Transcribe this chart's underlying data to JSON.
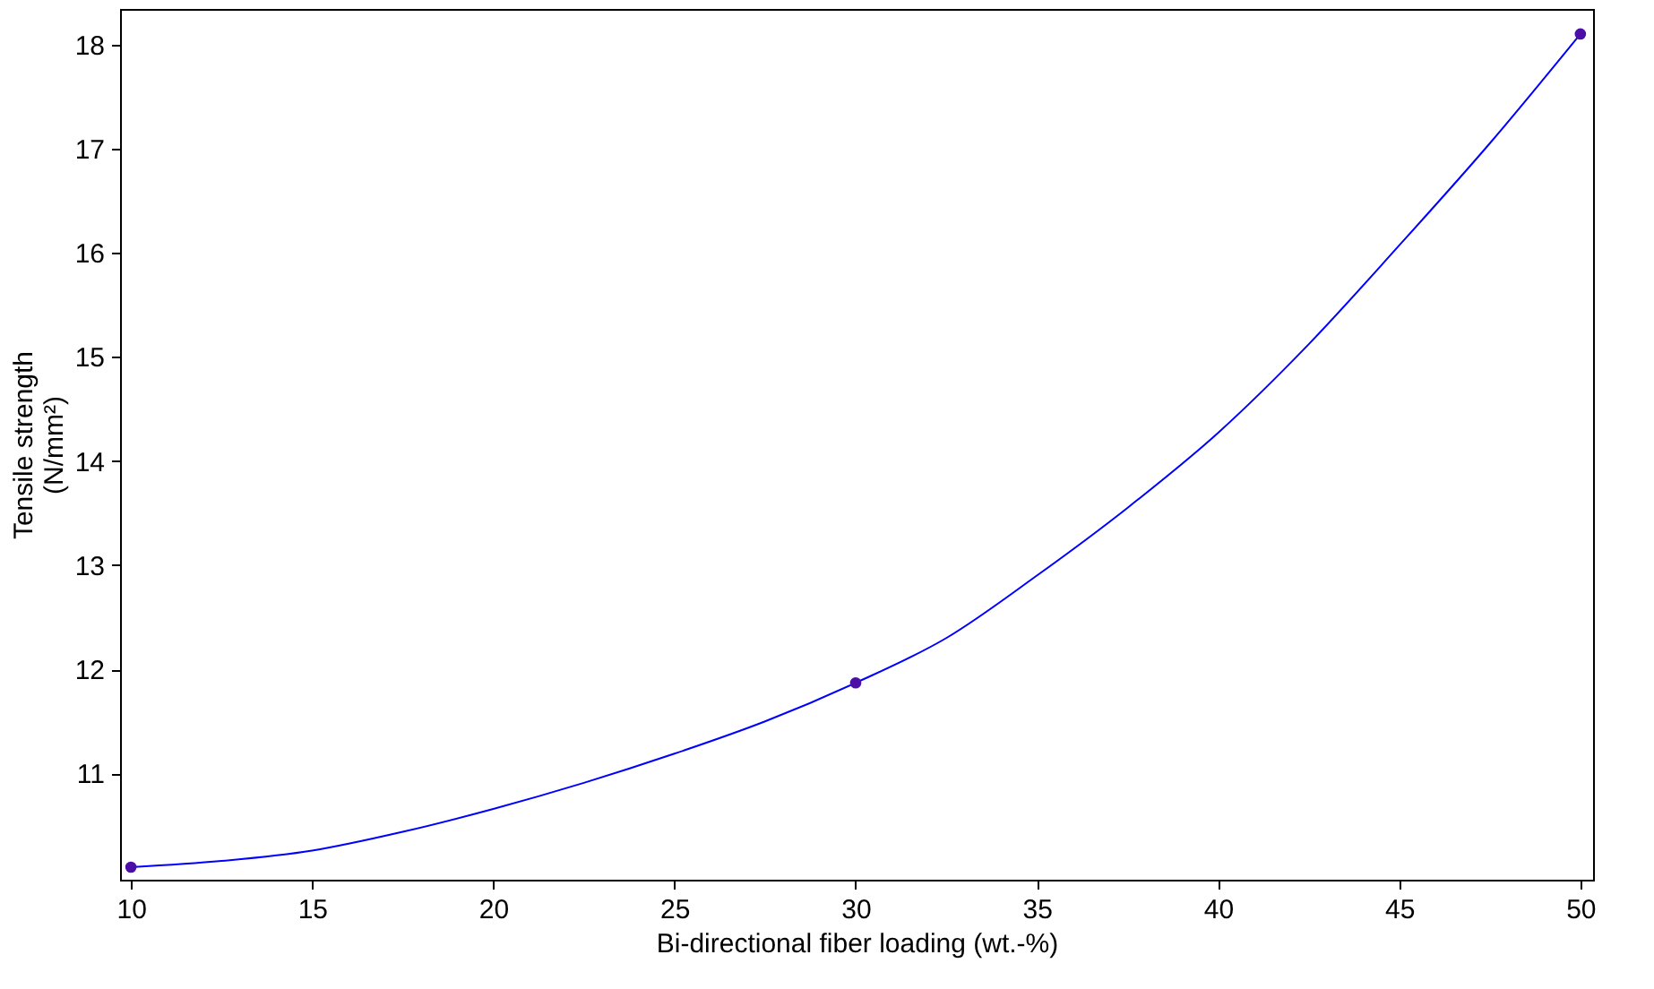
{
  "chart_data": {
    "type": "scatter",
    "xlabel": "Bi-directional fiber loading (wt.-%)",
    "ylabel": "Tensile strength\n(N/mm²)",
    "xlim": [
      9.7,
      50.35
    ],
    "xticks": [
      10,
      15,
      20,
      25,
      30,
      35,
      40,
      45,
      50
    ],
    "ylim": [
      9.98,
      18.34
    ],
    "yticks": [
      11,
      12,
      13,
      14,
      15,
      16,
      17,
      18
    ],
    "grid": false,
    "series": [
      {
        "type": "line",
        "color": "#0000ff",
        "marker": "none",
        "x": [
          10,
          12.5,
          15,
          17.5,
          20,
          22.5,
          25,
          27.5,
          30,
          32.5,
          35,
          37.5,
          40,
          42.5,
          45,
          47.5,
          50
        ],
        "values": [
          10.1,
          10.16,
          10.26,
          10.44,
          10.66,
          10.91,
          11.19,
          11.5,
          11.87,
          12.3,
          12.9,
          13.55,
          14.27,
          15.12,
          16.07,
          17.05,
          18.1
        ]
      },
      {
        "color": "#4b0fa8",
        "marker": "circle",
        "x": [
          10,
          30,
          50
        ],
        "values": [
          10.1,
          11.87,
          18.1
        ]
      }
    ]
  }
}
